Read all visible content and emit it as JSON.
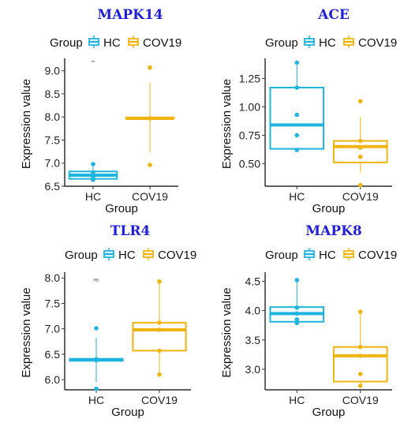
{
  "legend_title": "Group",
  "colors": {
    "HC": "#1eb4e0",
    "COV19": "#f0b410"
  },
  "chart_data": [
    {
      "type": "box",
      "title": "MAPK14",
      "xlabel": "Group",
      "ylabel": "Expression value",
      "categories": [
        "HC",
        "COV19"
      ],
      "yticks": [
        6.5,
        7.0,
        7.5,
        8.0,
        8.5,
        9.0
      ],
      "yticklabels": [
        "6.5",
        "7.0",
        "7.5",
        "8.0",
        "8.5",
        "9.0"
      ],
      "ylim": [
        6.5,
        9.2
      ],
      "annotation": "**",
      "annotation_y": 9.15,
      "legend": [
        "HC",
        "COV19"
      ],
      "series": [
        {
          "name": "HC",
          "min": 6.62,
          "q1": 6.66,
          "median": 6.74,
          "q3": 6.82,
          "max": 6.98,
          "points": [
            6.98,
            6.8,
            6.74,
            6.7,
            6.64
          ]
        },
        {
          "name": "COV19",
          "min": 7.23,
          "q1": 7.97,
          "median": 7.97,
          "q3": 7.99,
          "max": 8.75,
          "points": [
            9.07,
            7.97,
            6.96
          ]
        }
      ]
    },
    {
      "type": "box",
      "title": "ACE",
      "xlabel": "Group",
      "ylabel": "Expression value",
      "categories": [
        "HC",
        "COV19"
      ],
      "yticks": [
        0.5,
        0.75,
        1.0,
        1.25
      ],
      "yticklabels": [
        "0.50",
        "0.75",
        "1.00",
        "1.25"
      ],
      "ylim": [
        0.3,
        1.4
      ],
      "annotation": "",
      "annotation_y": 1.39,
      "legend": [
        "HC",
        "COV19"
      ],
      "series": [
        {
          "name": "HC",
          "min": 0.62,
          "q1": 0.63,
          "median": 0.84,
          "q3": 1.17,
          "max": 1.39,
          "points": [
            1.39,
            1.17,
            0.93,
            0.75,
            0.62
          ]
        },
        {
          "name": "COV19",
          "min": 0.42,
          "q1": 0.51,
          "median": 0.65,
          "q3": 0.7,
          "max": 0.91,
          "points": [
            1.05,
            0.7,
            0.64,
            0.56,
            0.31
          ]
        }
      ]
    },
    {
      "type": "box",
      "title": "TLR4",
      "xlabel": "Group",
      "ylabel": "Expression value",
      "categories": [
        "HC",
        "COV19"
      ],
      "yticks": [
        6.0,
        6.5,
        7.0,
        7.5,
        8.0
      ],
      "yticklabels": [
        "6.0",
        "6.5",
        "7.0",
        "7.5",
        "8.0"
      ],
      "ylim": [
        5.8,
        8.05
      ],
      "annotation": "ns",
      "annotation_y": 7.93,
      "legend": [
        "HC",
        "COV19"
      ],
      "series": [
        {
          "name": "HC",
          "min": 5.95,
          "q1": 6.37,
          "median": 6.39,
          "q3": 6.41,
          "max": 6.82,
          "points": [
            7.01,
            6.4,
            6.39,
            6.38,
            5.82
          ]
        },
        {
          "name": "COV19",
          "min": 6.1,
          "q1": 6.57,
          "median": 6.98,
          "q3": 7.12,
          "max": 7.93,
          "points": [
            7.93,
            7.12,
            6.98,
            6.57,
            6.1
          ]
        }
      ]
    },
    {
      "type": "box",
      "title": "MAPK8",
      "xlabel": "Group",
      "ylabel": "Expression value",
      "categories": [
        "HC",
        "COV19"
      ],
      "yticks": [
        3.0,
        3.5,
        4.0,
        4.5
      ],
      "yticklabels": [
        "3.0",
        "3.5",
        "4.0",
        "4.5"
      ],
      "ylim": [
        2.65,
        4.6
      ],
      "annotation": "",
      "annotation_y": 4.5,
      "legend": [
        "HC",
        "COV19"
      ],
      "series": [
        {
          "name": "HC",
          "min": 3.79,
          "q1": 3.81,
          "median": 3.95,
          "q3": 4.06,
          "max": 4.49,
          "points": [
            4.52,
            4.05,
            3.95,
            3.85,
            3.79
          ]
        },
        {
          "name": "COV19",
          "min": 2.72,
          "q1": 2.79,
          "median": 3.23,
          "q3": 3.38,
          "max": 3.98,
          "points": [
            3.98,
            3.38,
            3.23,
            2.92,
            2.72
          ]
        }
      ]
    }
  ]
}
